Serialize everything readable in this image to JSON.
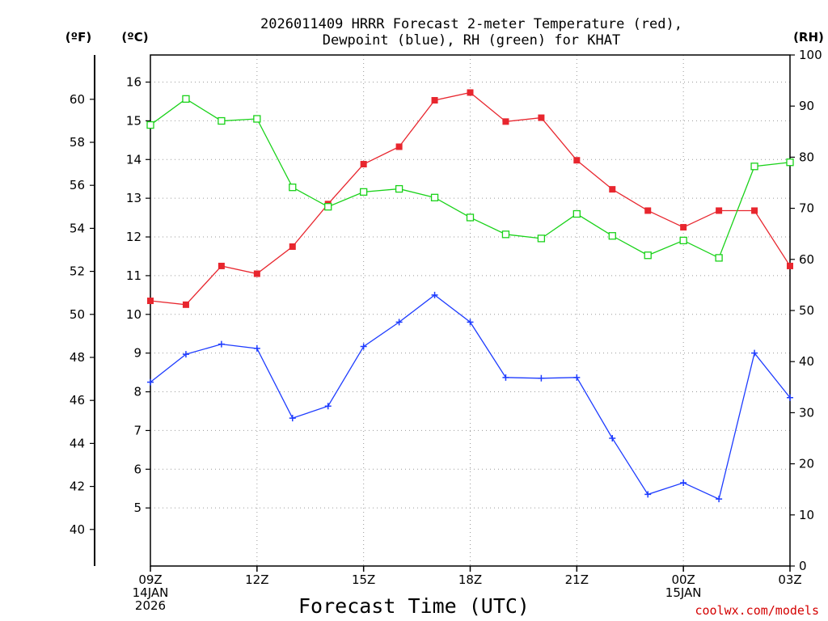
{
  "chart_data": {
    "type": "line",
    "title_line1": "2026011409 HRRR Forecast 2-meter Temperature (red),",
    "title_line2": "Dewpoint (blue), RH (green) for KHAT",
    "xlabel": "Forecast Time (UTC)",
    "credit": "coolwx.com/models",
    "unit_left_f": "(ºF)",
    "unit_left_c": "(ºC)",
    "unit_right": "(RH)",
    "x_hours": [
      0,
      1,
      2,
      3,
      4,
      5,
      6,
      7,
      8,
      9,
      10,
      11,
      12,
      13,
      14,
      15,
      16,
      17,
      18
    ],
    "x_ticks": [
      {
        "hour": 0,
        "lines": [
          "09Z",
          "14JAN",
          "2026"
        ]
      },
      {
        "hour": 3,
        "lines": [
          "12Z"
        ]
      },
      {
        "hour": 6,
        "lines": [
          "15Z"
        ]
      },
      {
        "hour": 9,
        "lines": [
          "18Z"
        ]
      },
      {
        "hour": 12,
        "lines": [
          "21Z"
        ]
      },
      {
        "hour": 15,
        "lines": [
          "00Z",
          "15JAN"
        ]
      },
      {
        "hour": 18,
        "lines": [
          "03Z"
        ]
      }
    ],
    "ylim_c": [
      3.5,
      16.7
    ],
    "yticks_c": [
      5,
      6,
      7,
      8,
      9,
      10,
      11,
      12,
      13,
      14,
      15,
      16
    ],
    "yticks_f": [
      40,
      42,
      44,
      46,
      48,
      50,
      52,
      54,
      56,
      58,
      60
    ],
    "ylim_rh": [
      0,
      100
    ],
    "yticks_rh": [
      0,
      10,
      20,
      30,
      40,
      50,
      60,
      70,
      80,
      90,
      100
    ],
    "series": [
      {
        "name": "Temperature",
        "axis": "c",
        "color": "#e8262e",
        "marker": "filled-square",
        "values": [
          10.35,
          10.25,
          11.25,
          11.05,
          11.75,
          12.85,
          13.88,
          14.33,
          15.53,
          15.73,
          14.98,
          15.08,
          13.98,
          13.23,
          12.68,
          12.25,
          12.68,
          12.68,
          11.25
        ]
      },
      {
        "name": "Dewpoint",
        "axis": "c",
        "color": "#1e3cff",
        "marker": "plus",
        "values": [
          8.25,
          8.97,
          9.23,
          9.12,
          7.32,
          7.63,
          9.17,
          9.8,
          10.5,
          9.8,
          8.37,
          8.35,
          8.37,
          6.8,
          5.35,
          5.65,
          5.23,
          9.0,
          7.85
        ]
      },
      {
        "name": "RH",
        "axis": "rh",
        "color": "#19d219",
        "marker": "open-square",
        "values": [
          86.3,
          91.4,
          87.1,
          87.5,
          74.1,
          70.3,
          73.2,
          73.8,
          72.1,
          68.2,
          64.9,
          64.1,
          68.9,
          64.6,
          60.8,
          63.7,
          60.3,
          78.2,
          79.0
        ]
      }
    ]
  }
}
